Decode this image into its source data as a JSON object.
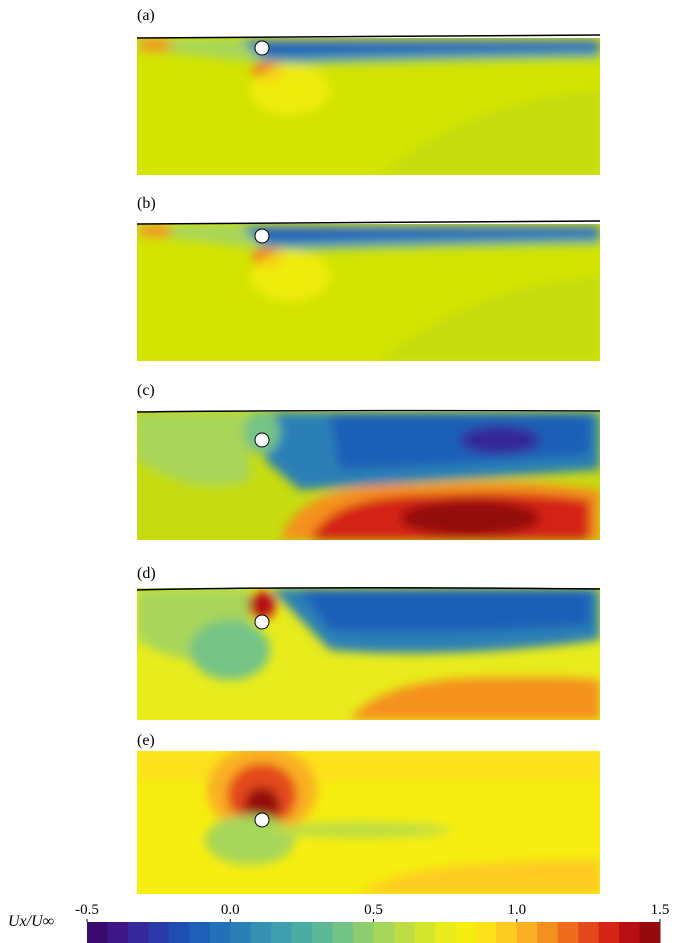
{
  "panels": [
    {
      "label": "(a)"
    },
    {
      "label": "(b)"
    },
    {
      "label": "(c)"
    },
    {
      "label": "(d)"
    },
    {
      "label": "(e)"
    }
  ],
  "colorbar": {
    "label": "Ux/U∞",
    "lim": [
      -0.5,
      1.5
    ],
    "ticks": [
      -0.5,
      {
        "value": 0,
        "label": "0.0"
      },
      0.5,
      {
        "value": 1,
        "label": "1.0"
      },
      1.5
    ],
    "colors": [
      "#3a0a6e",
      "#3c1785",
      "#36279a",
      "#2a3aa8",
      "#1f4eb2",
      "#1f5fb8",
      "#2270b8",
      "#2a80b6",
      "#3590b2",
      "#3f9fad",
      "#4caca4",
      "#5db898",
      "#74c386",
      "#8dcd70",
      "#a6d65a",
      "#bedd44",
      "#d4e52e",
      "#e8ec1c",
      "#f6ee10",
      "#fde11a",
      "#fdcb22",
      "#f9b022",
      "#f4901f",
      "#ee6d1c",
      "#e4481a",
      "#d42416",
      "#b80f12",
      "#940a0e"
    ]
  }
}
